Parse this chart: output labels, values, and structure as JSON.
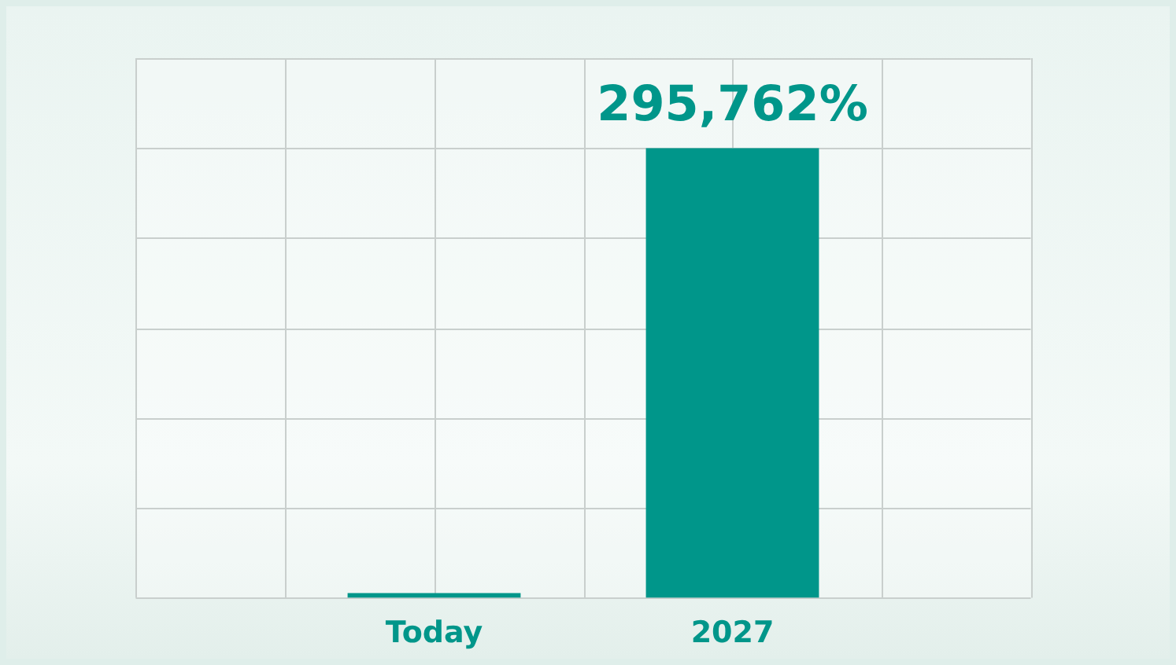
{
  "chart_data": {
    "type": "bar",
    "categories": [
      "Today",
      "2027"
    ],
    "values": [
      3000,
      295762
    ],
    "color": "#00968a",
    "value_labels": [
      null,
      "295,762%"
    ],
    "grid": true
  }
}
